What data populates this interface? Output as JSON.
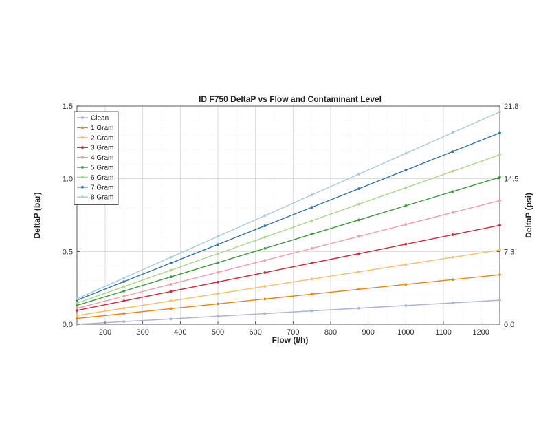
{
  "chart_data": {
    "type": "line",
    "title": "ID F750 DeltaP vs Flow and Contaminant Level",
    "xlabel": "Flow (l/h)",
    "ylabel": "DeltaP (bar)",
    "y2label": "DeltaP (psi)",
    "xlim": [
      125,
      1250
    ],
    "ylim": [
      0,
      1.5
    ],
    "xticks": [
      200,
      300,
      400,
      500,
      600,
      700,
      800,
      900,
      1000,
      1100,
      1200
    ],
    "yticks": [
      0.0,
      0.5,
      1.0,
      1.5
    ],
    "ytick_labels": [
      "0.0",
      "0.5",
      "1.0",
      "1.5"
    ],
    "y2ticks": [
      0.0,
      7.3,
      14.5,
      21.8
    ],
    "y2tick_labels": [
      "0.0",
      "7.3",
      "14.5",
      "21.8"
    ],
    "grid": true,
    "legend_position": "top-left",
    "x": [
      125,
      250,
      375,
      500,
      625,
      750,
      875,
      1000,
      1125,
      1250
    ],
    "series": [
      {
        "name": "Clean",
        "color": "#aab4d6",
        "y0": 0.0,
        "y1": 0.165
      },
      {
        "name": "1 Gram",
        "color": "#e8841c",
        "y0": 0.04,
        "y1": 0.34
      },
      {
        "name": "2 Gram",
        "color": "#f7bd6c",
        "y0": 0.06,
        "y1": 0.51
      },
      {
        "name": "3 Gram",
        "color": "#cc2a36",
        "y0": 0.095,
        "y1": 0.68
      },
      {
        "name": "4 Gram",
        "color": "#f39aa6",
        "y0": 0.11,
        "y1": 0.85
      },
      {
        "name": "5 Gram",
        "color": "#3e9a3e",
        "y0": 0.13,
        "y1": 1.01
      },
      {
        "name": "6 Gram",
        "color": "#a9d88b",
        "y0": 0.145,
        "y1": 1.165
      },
      {
        "name": "7 Gram",
        "color": "#2f73b5",
        "y0": 0.165,
        "y1": 1.315
      },
      {
        "name": "8 Gram",
        "color": "#a9cbe2",
        "y0": 0.175,
        "y1": 1.46
      }
    ]
  }
}
